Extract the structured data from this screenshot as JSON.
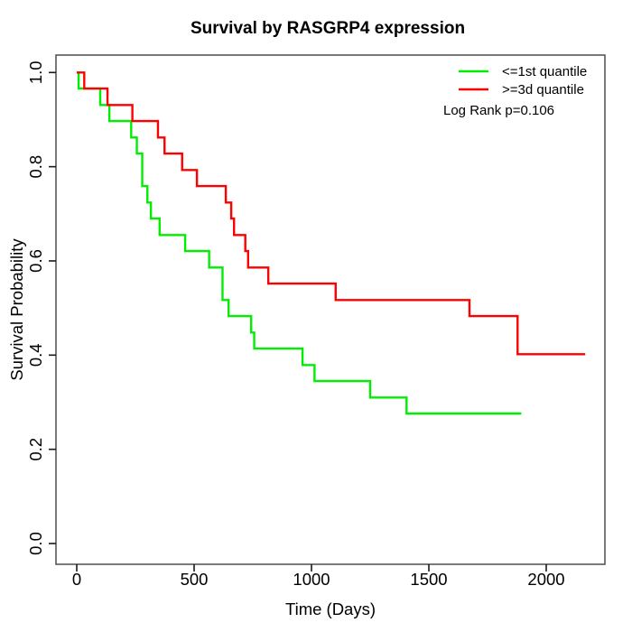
{
  "title": "Survival by RASGRP4 expression",
  "legend": {
    "items": [
      {
        "label": "<=1st quantile",
        "color": "#00ee00"
      },
      {
        "label": ">=3d quantile",
        "color": "#ff0000"
      }
    ],
    "note": "Log Rank p=0.106"
  },
  "chart_data": {
    "type": "line",
    "subtype": "kaplan-meier-step",
    "title": "Survival by RASGRP4 expression",
    "xlabel": "Time (Days)",
    "ylabel": "Survival Probability",
    "xlim": [
      0,
      2200
    ],
    "ylim": [
      0.0,
      1.0
    ],
    "xticks": [
      0,
      500,
      1000,
      1500,
      2000
    ],
    "ytick_labels": [
      "0.0",
      "0.2",
      "0.4",
      "0.6",
      "0.8",
      "1.0"
    ],
    "grid": false,
    "legend_position": "top-right",
    "annotation": "Log Rank p=0.106",
    "series": [
      {
        "name": "<=1st quantile",
        "color": "#00ee00",
        "end_time": 1894,
        "steps": [
          [
            0,
            1.0
          ],
          [
            8,
            0.966
          ],
          [
            100,
            0.931
          ],
          [
            139,
            0.897
          ],
          [
            232,
            0.862
          ],
          [
            256,
            0.828
          ],
          [
            279,
            0.759
          ],
          [
            301,
            0.724
          ],
          [
            316,
            0.69
          ],
          [
            353,
            0.655
          ],
          [
            462,
            0.621
          ],
          [
            564,
            0.586
          ],
          [
            621,
            0.517
          ],
          [
            647,
            0.483
          ],
          [
            743,
            0.448
          ],
          [
            756,
            0.414
          ],
          [
            962,
            0.379
          ],
          [
            1013,
            0.345
          ],
          [
            1250,
            0.31
          ],
          [
            1405,
            0.276
          ]
        ]
      },
      {
        "name": ">=3d quantile",
        "color": "#ff0000",
        "end_time": 2166,
        "steps": [
          [
            0,
            1.0
          ],
          [
            32,
            0.966
          ],
          [
            131,
            0.931
          ],
          [
            237,
            0.897
          ],
          [
            346,
            0.862
          ],
          [
            374,
            0.828
          ],
          [
            449,
            0.793
          ],
          [
            512,
            0.759
          ],
          [
            635,
            0.724
          ],
          [
            658,
            0.69
          ],
          [
            670,
            0.655
          ],
          [
            718,
            0.621
          ],
          [
            730,
            0.586
          ],
          [
            816,
            0.552
          ],
          [
            1103,
            0.517
          ],
          [
            1673,
            0.483
          ],
          [
            1878,
            0.402
          ]
        ]
      }
    ]
  }
}
